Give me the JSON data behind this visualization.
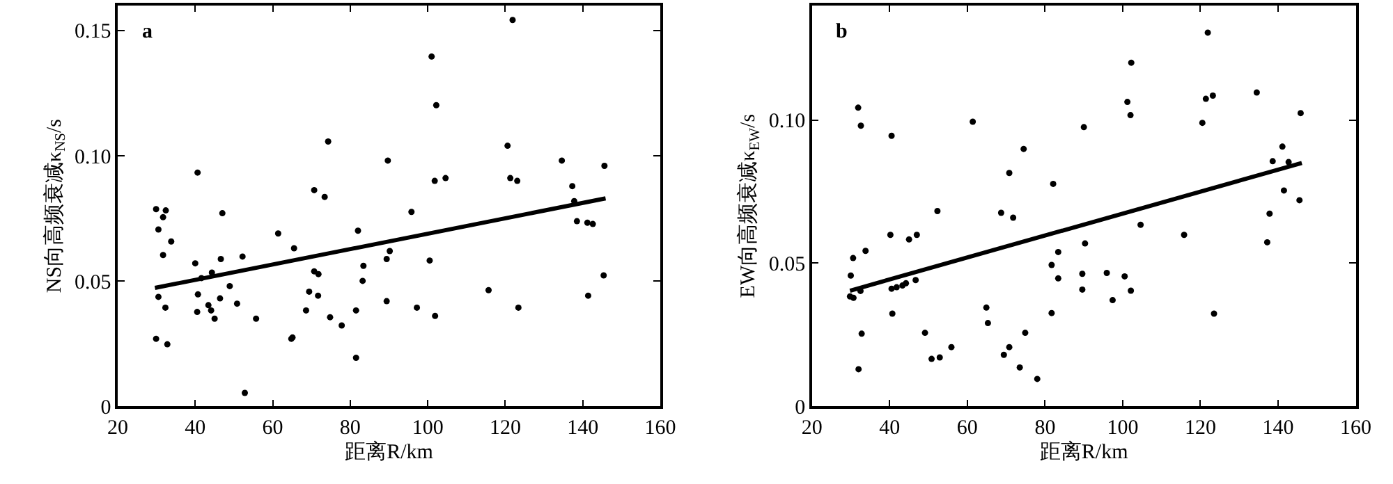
{
  "chart_data": [
    {
      "type": "scatter",
      "xlabel": "距离R/km",
      "ylabel": "NS向高频衰减κ$_{NS}$/s",
      "annotations": [
        "a"
      ],
      "xlim": [
        20,
        160
      ],
      "xticks": [
        20,
        40,
        60,
        80,
        100,
        120,
        140,
        160
      ],
      "ylim": [
        0,
        0.16
      ],
      "yticks": [
        0,
        {
          "value": 0.05,
          "label": "0.05"
        },
        {
          "value": 0.1,
          "label": "0.10"
        },
        {
          "value": 0.15,
          "label": "0.15"
        }
      ],
      "series": [
        {
          "marker": "circle",
          "color": "#000000",
          "x": [
            29.9,
            30.5,
            32.4,
            31.7,
            31.7,
            33.8,
            30.5,
            32.3,
            29.9,
            32.8,
            40.6,
            47.0,
            40.0,
            41.6,
            40.7,
            44.3,
            46.6,
            48.9,
            46.4,
            43.4,
            44.1,
            40.5,
            45.0,
            50.8,
            52.2,
            55.7,
            52.8,
            61.4,
            65.5,
            64.8,
            65.1,
            70.7,
            73.4,
            74.3,
            70.7,
            71.8,
            69.4,
            71.7,
            68.6,
            74.8,
            77.8,
            82.0,
            83.4,
            83.2,
            81.5,
            81.5,
            89.7,
            89.4,
            90.2,
            89.4,
            121.9,
            101.0,
            102.2,
            120.6,
            134.6,
            145.6,
            101.8,
            104.6,
            121.3,
            123.1,
            137.3,
            137.8,
            95.8,
            138.5,
            141.2,
            142.6,
            100.5,
            145.4,
            115.7,
            141.4,
            97.2,
            123.4,
            101.9
          ],
          "values": [
            0.0787,
            0.0706,
            0.0782,
            0.0755,
            0.0604,
            0.0658,
            0.0437,
            0.0394,
            0.027,
            0.0248,
            0.0933,
            0.0771,
            0.0571,
            0.0512,
            0.0447,
            0.0534,
            0.0588,
            0.048,
            0.0431,
            0.0404,
            0.0383,
            0.0377,
            0.035,
            0.041,
            0.0598,
            0.035,
            0.0054,
            0.069,
            0.0631,
            0.027,
            0.0275,
            0.0863,
            0.0836,
            0.1057,
            0.0539,
            0.0528,
            0.0458,
            0.0442,
            0.0383,
            0.0356,
            0.0323,
            0.0701,
            0.0561,
            0.0501,
            0.0383,
            0.0194,
            0.0981,
            0.0588,
            0.062,
            0.042,
            0.1542,
            0.1396,
            0.1202,
            0.104,
            0.0981,
            0.096,
            0.09,
            0.0911,
            0.0911,
            0.09,
            0.0879,
            0.0819,
            0.0776,
            0.0739,
            0.0733,
            0.0728,
            0.0582,
            0.0523,
            0.0464,
            0.0442,
            0.0394,
            0.0394,
            0.0361
          ]
        },
        {
          "type": "line",
          "color": "#000000",
          "x": [
            29.6,
            145.9
          ],
          "values": [
            0.0473,
            0.083
          ]
        }
      ]
    },
    {
      "type": "scatter",
      "xlabel": "距离R/km",
      "ylabel": "EW向高频衰减κ$_{EW}$/s",
      "annotations": [
        "b"
      ],
      "xlim": [
        20,
        160
      ],
      "xticks": [
        20,
        40,
        60,
        80,
        100,
        120,
        140,
        160
      ],
      "ylim": [
        0,
        0.14
      ],
      "yticks": [
        0,
        {
          "value": 0.05,
          "label": "0.05"
        },
        {
          "value": 0.1,
          "label": "0.10"
        }
      ],
      "series": [
        {
          "marker": "circle",
          "color": "#000000",
          "x": [
            31.9,
            32.6,
            40.5,
            61.4,
            74.5,
            70.8,
            82.1,
            52.3,
            68.7,
            71.8,
            40.2,
            47.0,
            45.0,
            33.8,
            30.6,
            30.0,
            81.7,
            83.4,
            83.4,
            46.7,
            44.2,
            43.3,
            41.8,
            40.5,
            32.5,
            29.8,
            30.7,
            40.7,
            81.7,
            64.9,
            65.3,
            32.8,
            49.1,
            74.9,
            55.9,
            70.8,
            50.8,
            52.9,
            69.4,
            73.5,
            32.0,
            78.0,
            90.0,
            90.3,
            89.6,
            89.6,
            121.9,
            102.2,
            101.2,
            102.0,
            121.4,
            123.2,
            134.5,
            145.8,
            120.5,
            141.1,
            138.6,
            142.7,
            141.5,
            145.5,
            137.8,
            137.2,
            104.6,
            115.8,
            95.9,
            100.5,
            97.4,
            102.1,
            123.5
          ],
          "values": [
            0.1043,
            0.098,
            0.0945,
            0.0994,
            0.0899,
            0.0815,
            0.0777,
            0.0682,
            0.0676,
            0.0659,
            0.0599,
            0.0599,
            0.0583,
            0.0543,
            0.0518,
            0.0457,
            0.0494,
            0.0539,
            0.0447,
            0.0441,
            0.043,
            0.0422,
            0.0416,
            0.0411,
            0.0403,
            0.0384,
            0.0379,
            0.0324,
            0.0326,
            0.0345,
            0.0291,
            0.0254,
            0.0257,
            0.0257,
            0.0207,
            0.0207,
            0.0166,
            0.0171,
            0.018,
            0.0136,
            0.013,
            0.0096,
            0.0975,
            0.0569,
            0.0463,
            0.0408,
            0.1305,
            0.12,
            0.1063,
            0.1017,
            0.1074,
            0.1085,
            0.1096,
            0.1024,
            0.099,
            0.0907,
            0.0856,
            0.0853,
            0.0754,
            0.072,
            0.0673,
            0.0573,
            0.0634,
            0.0599,
            0.0466,
            0.0454,
            0.0371,
            0.0404,
            0.0324
          ]
        },
        {
          "type": "line",
          "color": "#000000",
          "x": [
            29.8,
            146.1
          ],
          "values": [
            0.0404,
            0.085
          ]
        }
      ]
    }
  ]
}
